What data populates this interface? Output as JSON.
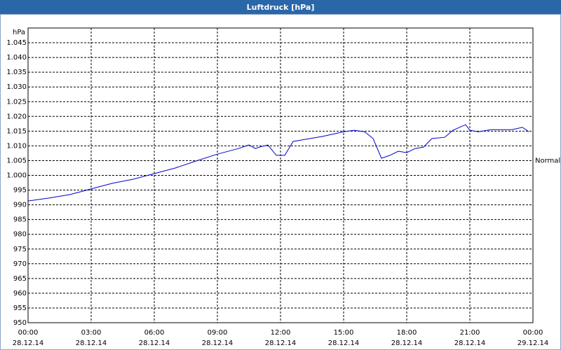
{
  "chart_data": {
    "type": "line",
    "title": "Luftdruck [hPa]",
    "y_unit": "hPa",
    "x": [
      0,
      0.5,
      1,
      2,
      3,
      4,
      5,
      6,
      7,
      8,
      9,
      10,
      10.5,
      10.8,
      11,
      11.4,
      11.8,
      12.2,
      12.6,
      13,
      14,
      15,
      15.5,
      16,
      16.4,
      16.8,
      17.2,
      17.6,
      18,
      18.4,
      18.8,
      19.2,
      19.8,
      20.2,
      20.8,
      21,
      21.4,
      22,
      23,
      23.5,
      23.8
    ],
    "series": [
      {
        "name": "Luftdruck",
        "color": "#0000cc",
        "values": [
          991.3,
          991.8,
          992.3,
          993.5,
          995.4,
          997.3,
          998.7,
          1000.6,
          1002.5,
          1004.9,
          1007.2,
          1009.1,
          1010.3,
          1009.1,
          1009.6,
          1010.3,
          1006.8,
          1006.8,
          1011.5,
          1012,
          1013.2,
          1014.8,
          1015.3,
          1014.8,
          1012.5,
          1005.8,
          1006.8,
          1008.2,
          1007.7,
          1009.1,
          1009.6,
          1012.5,
          1012.9,
          1015.3,
          1017.2,
          1015.3,
          1014.8,
          1015.5,
          1015.5,
          1016.3,
          1014.8
        ]
      }
    ],
    "xlim": [
      0,
      24
    ],
    "xticks": [
      {
        "value": 0,
        "label": "00:00",
        "date": "28.12.14"
      },
      {
        "value": 3,
        "label": "03:00",
        "date": "28.12.14"
      },
      {
        "value": 6,
        "label": "06:00",
        "date": "28.12.14"
      },
      {
        "value": 9,
        "label": "09:00",
        "date": "28.12.14"
      },
      {
        "value": 12,
        "label": "12:00",
        "date": "28.12.14"
      },
      {
        "value": 15,
        "label": "15:00",
        "date": "28.12.14"
      },
      {
        "value": 18,
        "label": "18:00",
        "date": "28.12.14"
      },
      {
        "value": 21,
        "label": "21:00",
        "date": "28.12.14"
      },
      {
        "value": 24,
        "label": "00:00",
        "date": "29.12.14"
      }
    ],
    "ylim": [
      950,
      1050
    ],
    "yticks": [
      950,
      955,
      960,
      965,
      970,
      975,
      980,
      985,
      990,
      995,
      {
        "value": 1000,
        "label": "1.000"
      },
      {
        "value": 1005,
        "label": "1.005"
      },
      {
        "value": 1010,
        "label": "1.010"
      },
      {
        "value": 1015,
        "label": "1.015"
      },
      {
        "value": 1020,
        "label": "1.020"
      },
      {
        "value": 1025,
        "label": "1.025"
      },
      {
        "value": 1030,
        "label": "1.030"
      },
      {
        "value": 1035,
        "label": "1.035"
      },
      {
        "value": 1040,
        "label": "1.040"
      },
      {
        "value": 1045,
        "label": "1.045"
      }
    ],
    "reference": {
      "label": "Normal",
      "value": 1005
    },
    "grid": true
  }
}
